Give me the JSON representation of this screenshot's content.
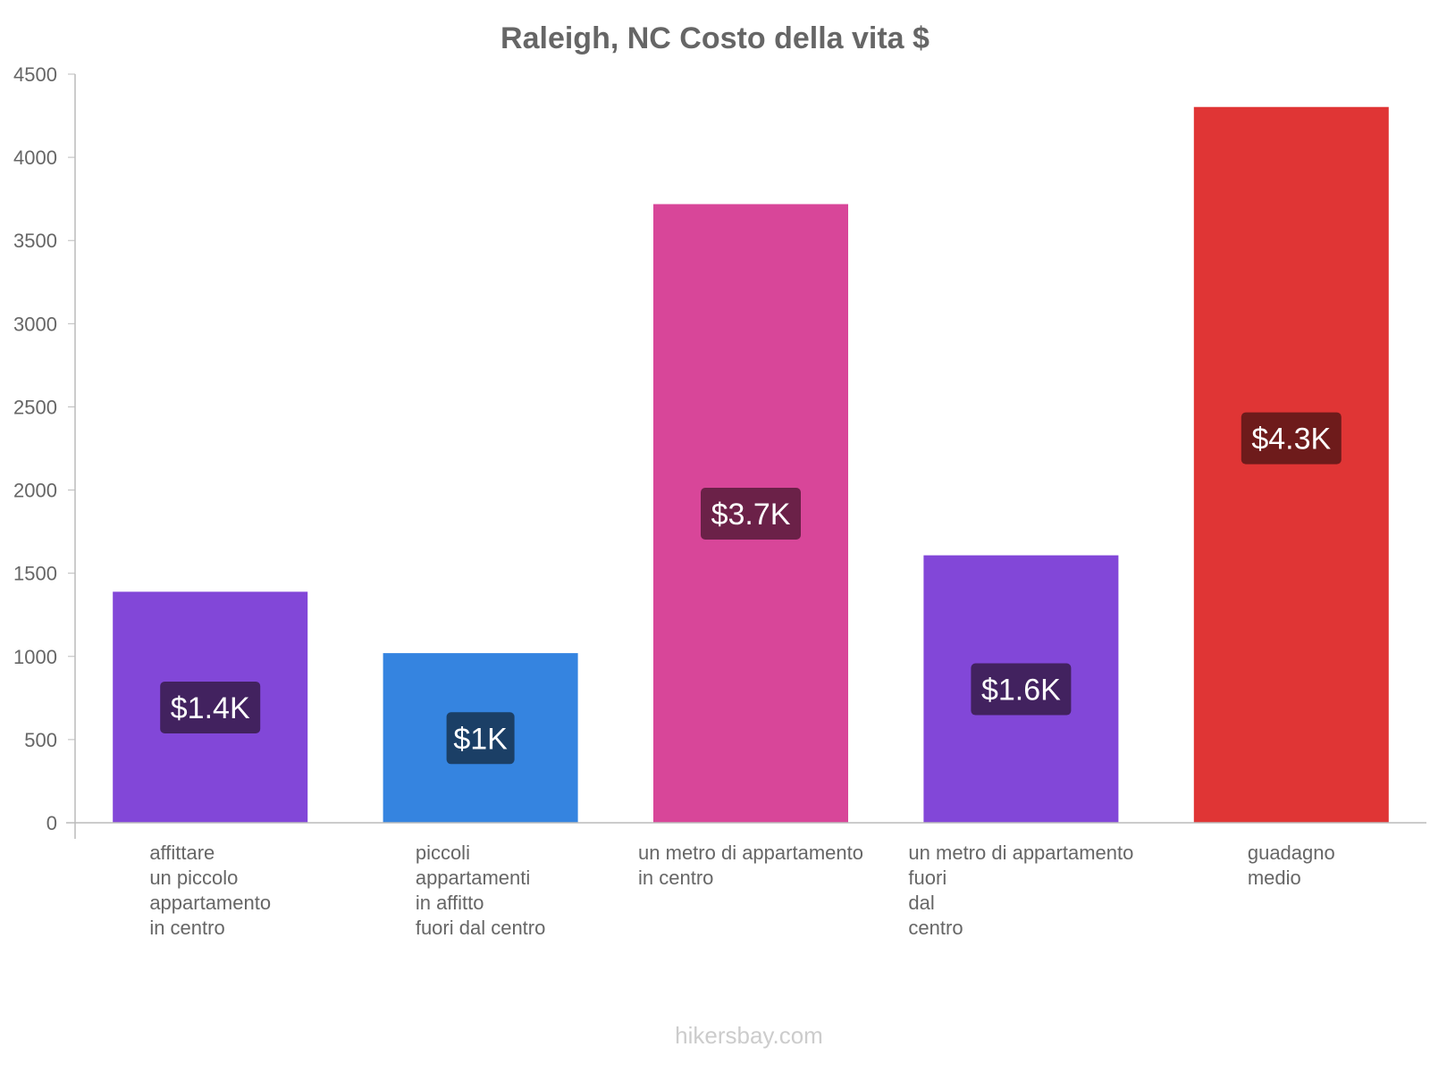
{
  "chart_data": {
    "type": "bar",
    "title": "Raleigh, NC Costo della vita $",
    "xlabel": "",
    "ylabel": "",
    "ylim": [
      0,
      4500
    ],
    "yticks": [
      0,
      500,
      1000,
      1500,
      2000,
      2500,
      3000,
      3500,
      4000,
      4500
    ],
    "categories": [
      [
        "affittare",
        "un piccolo",
        "appartamento",
        "in centro"
      ],
      [
        "piccoli",
        "appartamenti",
        "in affitto",
        "fuori dal centro"
      ],
      [
        "un metro di appartamento",
        "in centro"
      ],
      [
        "un metro di appartamento",
        "fuori",
        "dal",
        "centro"
      ],
      [
        "guadagno",
        "medio"
      ]
    ],
    "values": [
      1386,
      1017,
      3716,
      1605,
      4300
    ],
    "data_labels": [
      "$1.4K",
      "$1K",
      "$3.7K",
      "$1.6K",
      "$4.3K"
    ],
    "colors": [
      "#8247d8",
      "#3584e0",
      "#d84699",
      "#8247d8",
      "#e03535"
    ],
    "label_bg_colors": [
      "#42225f",
      "#1b3f66",
      "#6b2148",
      "#42225f",
      "#6e1b1b"
    ],
    "grid": false,
    "legend": "none"
  },
  "footer": {
    "credit": "hikersbay.com"
  }
}
